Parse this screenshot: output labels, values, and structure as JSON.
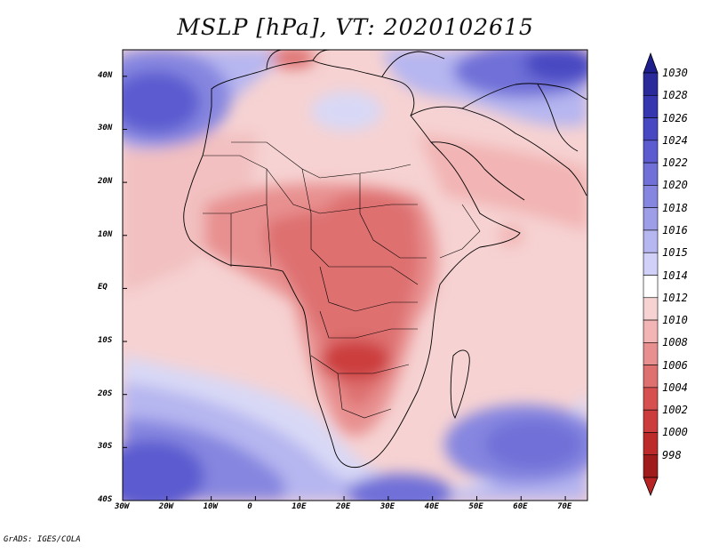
{
  "map": {
    "title": "MSLP [hPa], VT: 2020102615",
    "footer": "GrADS: IGES/COLA",
    "lon_ticks": [
      "30W",
      "20W",
      "10W",
      "0",
      "10E",
      "20E",
      "30E",
      "40E",
      "50E",
      "60E",
      "70E"
    ],
    "lat_ticks": [
      "40N",
      "30N",
      "20N",
      "10N",
      "EQ",
      "10S",
      "20S",
      "30S",
      "40S"
    ],
    "extent": {
      "lon_min": -30,
      "lon_max": 75,
      "lat_min": -40,
      "lat_max": 45
    },
    "colorbar": {
      "levels": [
        "1030",
        "1028",
        "1026",
        "1024",
        "1022",
        "1020",
        "1018",
        "1016",
        "1015",
        "1014",
        "1012",
        "1010",
        "1008",
        "1006",
        "1004",
        "1002",
        "1000",
        "998"
      ],
      "colors": [
        "#2a2a9a",
        "#3636b0",
        "#4848c2",
        "#5c5cd0",
        "#7070d8",
        "#8686e0",
        "#9e9ee8",
        "#b6b6f0",
        "#d0d0f8",
        "#ffffff",
        "#f6d2d2",
        "#f2b4b4",
        "#e89090",
        "#de7070",
        "#d65050",
        "#cc3c3c",
        "#bc2a2a",
        "#a01c1c"
      ],
      "top_arrow_color": "#1e1e8c",
      "bottom_arrow_color": "#b82424"
    }
  }
}
